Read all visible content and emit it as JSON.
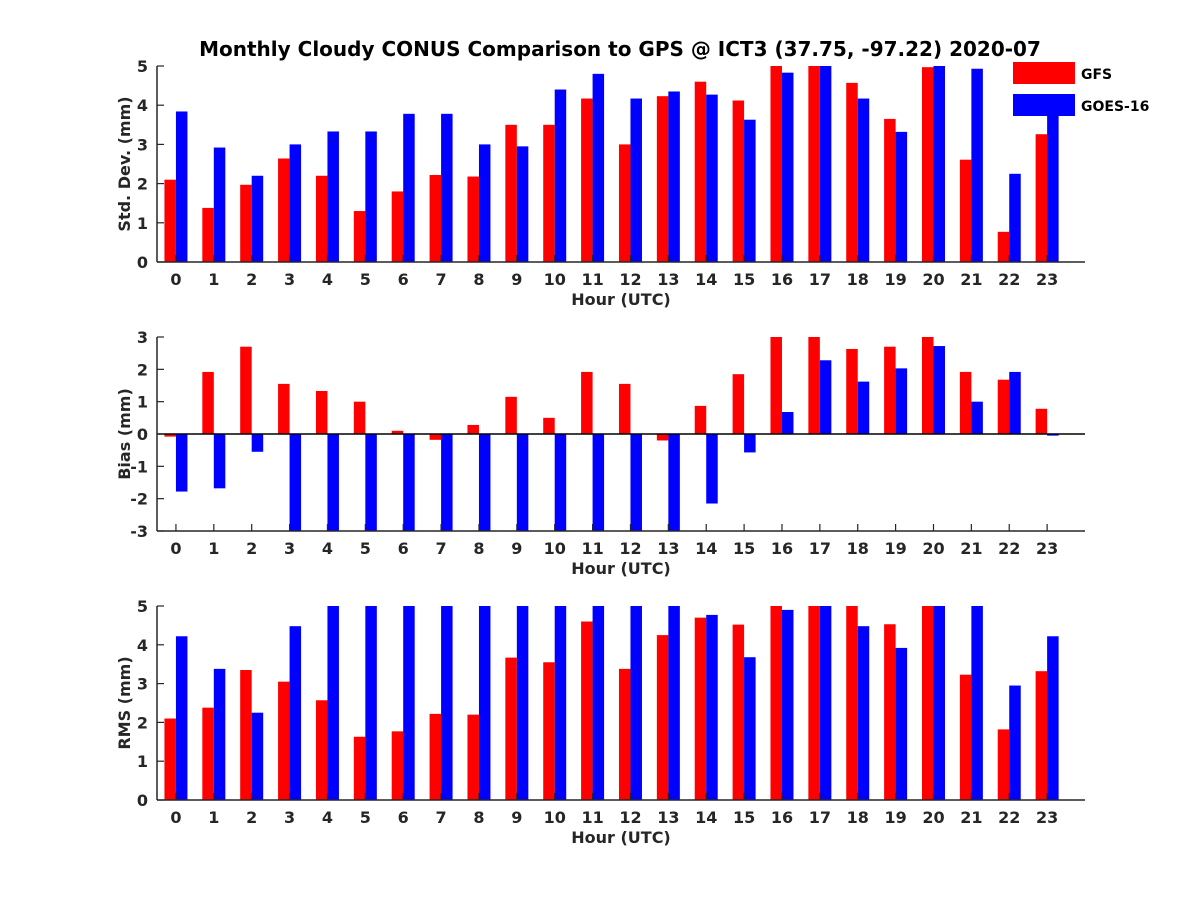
{
  "title": "Monthly Cloudy CONUS Comparison to GPS @ ICT3 (37.75, -97.22) 2020-07",
  "colors": {
    "GFS": "#ff0000",
    "GOES-16": "#0000ff"
  },
  "legend": {
    "placement": "top-right",
    "entries": [
      "GFS",
      "GOES-16"
    ]
  },
  "chart_data": [
    {
      "type": "bar",
      "categories": [
        "0",
        "1",
        "2",
        "3",
        "4",
        "5",
        "6",
        "7",
        "8",
        "9",
        "10",
        "11",
        "12",
        "13",
        "14",
        "15",
        "16",
        "17",
        "18",
        "19",
        "20",
        "21",
        "22",
        "23"
      ],
      "xlabel": "Hour (UTC)",
      "ylabel": "Std. Dev. (mm)",
      "ylim": [
        0,
        5
      ],
      "yticks": [
        0,
        1,
        2,
        3,
        4,
        5
      ],
      "grid": false,
      "series": [
        {
          "name": "GFS",
          "values": [
            2.1,
            1.38,
            1.97,
            2.64,
            2.2,
            1.3,
            1.8,
            2.22,
            2.18,
            3.5,
            3.5,
            4.17,
            3.0,
            4.23,
            4.6,
            4.12,
            5.0,
            5.0,
            4.57,
            3.65,
            4.97,
            2.61,
            0.77,
            3.26
          ]
        },
        {
          "name": "GOES-16",
          "values": [
            3.84,
            2.92,
            2.2,
            3.0,
            3.33,
            3.33,
            3.78,
            3.78,
            3.0,
            2.95,
            4.4,
            4.8,
            4.17,
            4.35,
            4.27,
            3.63,
            4.83,
            5.0,
            4.17,
            3.32,
            5.0,
            4.93,
            2.25,
            4.23
          ]
        }
      ]
    },
    {
      "type": "bar",
      "categories": [
        "0",
        "1",
        "2",
        "3",
        "4",
        "5",
        "6",
        "7",
        "8",
        "9",
        "10",
        "11",
        "12",
        "13",
        "14",
        "15",
        "16",
        "17",
        "18",
        "19",
        "20",
        "21",
        "22",
        "23"
      ],
      "xlabel": "Hour (UTC)",
      "ylabel": "Bias (mm)",
      "ylim": [
        -3,
        3
      ],
      "yticks": [
        -3,
        -2,
        -1,
        0,
        1,
        2,
        3
      ],
      "grid": false,
      "series": [
        {
          "name": "GFS",
          "values": [
            -0.08,
            1.92,
            2.7,
            1.55,
            1.33,
            1.0,
            0.1,
            -0.18,
            0.28,
            1.15,
            0.5,
            1.92,
            1.55,
            -0.2,
            0.87,
            1.85,
            3.0,
            3.0,
            2.63,
            2.7,
            3.0,
            1.92,
            1.68,
            0.78
          ]
        },
        {
          "name": "GOES-16",
          "values": [
            -1.78,
            -1.68,
            -0.55,
            -3.0,
            -3.0,
            -3.0,
            -3.0,
            -3.0,
            -3.0,
            -3.0,
            -3.0,
            -3.0,
            -3.0,
            -3.0,
            -2.15,
            -0.57,
            0.68,
            2.28,
            1.62,
            2.03,
            2.72,
            1.0,
            1.92,
            -0.05
          ]
        }
      ]
    },
    {
      "type": "bar",
      "categories": [
        "0",
        "1",
        "2",
        "3",
        "4",
        "5",
        "6",
        "7",
        "8",
        "9",
        "10",
        "11",
        "12",
        "13",
        "14",
        "15",
        "16",
        "17",
        "18",
        "19",
        "20",
        "21",
        "22",
        "23"
      ],
      "xlabel": "Hour (UTC)",
      "ylabel": "RMS (mm)",
      "ylim": [
        0,
        5
      ],
      "yticks": [
        0,
        1,
        2,
        3,
        4,
        5
      ],
      "grid": false,
      "series": [
        {
          "name": "GFS",
          "values": [
            2.1,
            2.38,
            3.35,
            3.05,
            2.57,
            1.63,
            1.77,
            2.22,
            2.2,
            3.67,
            3.55,
            4.6,
            3.38,
            4.25,
            4.7,
            4.52,
            5.0,
            5.0,
            5.0,
            4.53,
            5.0,
            3.23,
            1.82,
            3.32
          ]
        },
        {
          "name": "GOES-16",
          "values": [
            4.22,
            3.38,
            2.25,
            4.48,
            5.0,
            5.0,
            5.0,
            5.0,
            5.0,
            5.0,
            5.0,
            5.0,
            5.0,
            5.0,
            4.77,
            3.68,
            4.9,
            5.0,
            4.48,
            3.92,
            5.0,
            5.0,
            2.95,
            4.22
          ]
        }
      ]
    }
  ]
}
